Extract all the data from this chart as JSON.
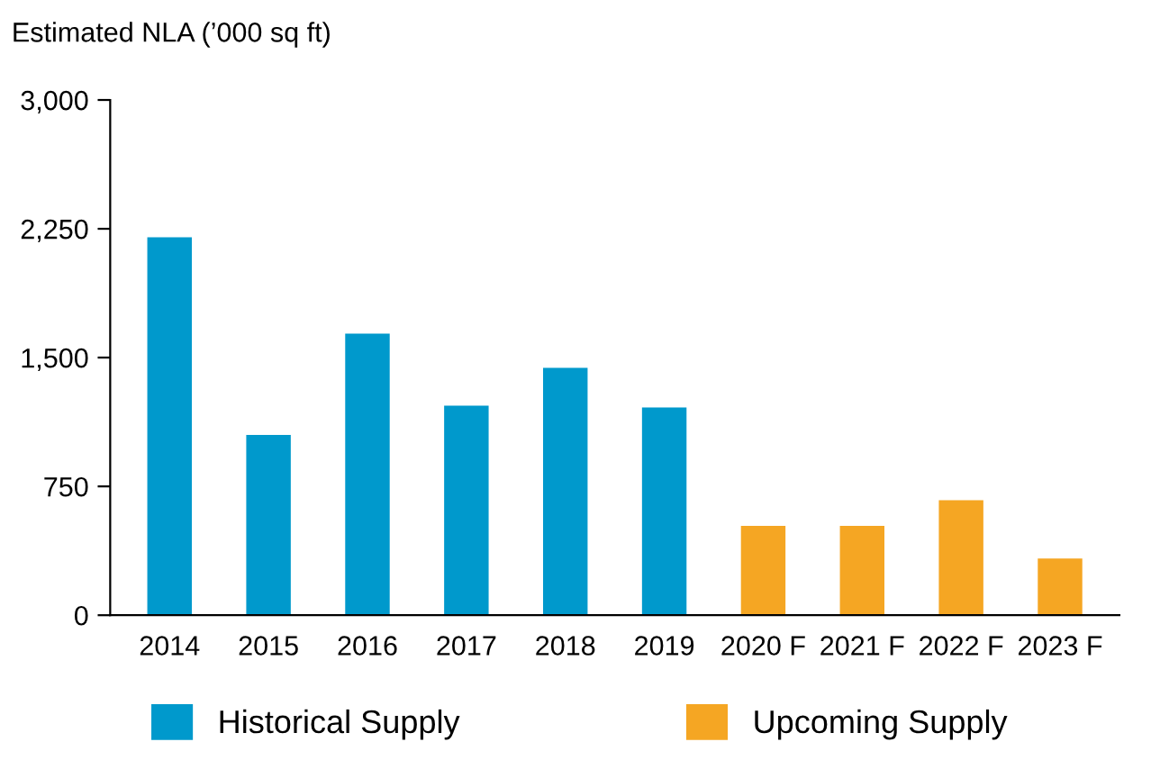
{
  "chart_data": {
    "type": "bar",
    "ylabel": "Estimated NLA (’000 sq ft)",
    "categories": [
      "2014",
      "2015",
      "2016",
      "2017",
      "2018",
      "2019",
      "2020 F",
      "2021 F",
      "2022 F",
      "2023 F"
    ],
    "series": [
      {
        "name": "Historical Supply",
        "color": "#0099cc",
        "values": [
          2200,
          1050,
          1640,
          1220,
          1440,
          1210,
          null,
          null,
          null,
          null
        ]
      },
      {
        "name": "Upcoming Supply",
        "color": "#f5a623",
        "values": [
          null,
          null,
          null,
          null,
          null,
          null,
          520,
          520,
          670,
          330
        ]
      }
    ],
    "ylim": [
      0,
      3000
    ],
    "yticks": [
      0,
      {
        "value": 750,
        "label": "750"
      },
      {
        "value": 1500,
        "label": "1,500"
      },
      {
        "value": 2250,
        "label": "2,250"
      },
      {
        "value": 3000,
        "label": "3,000"
      }
    ],
    "grid": false,
    "legend": "bottom"
  }
}
